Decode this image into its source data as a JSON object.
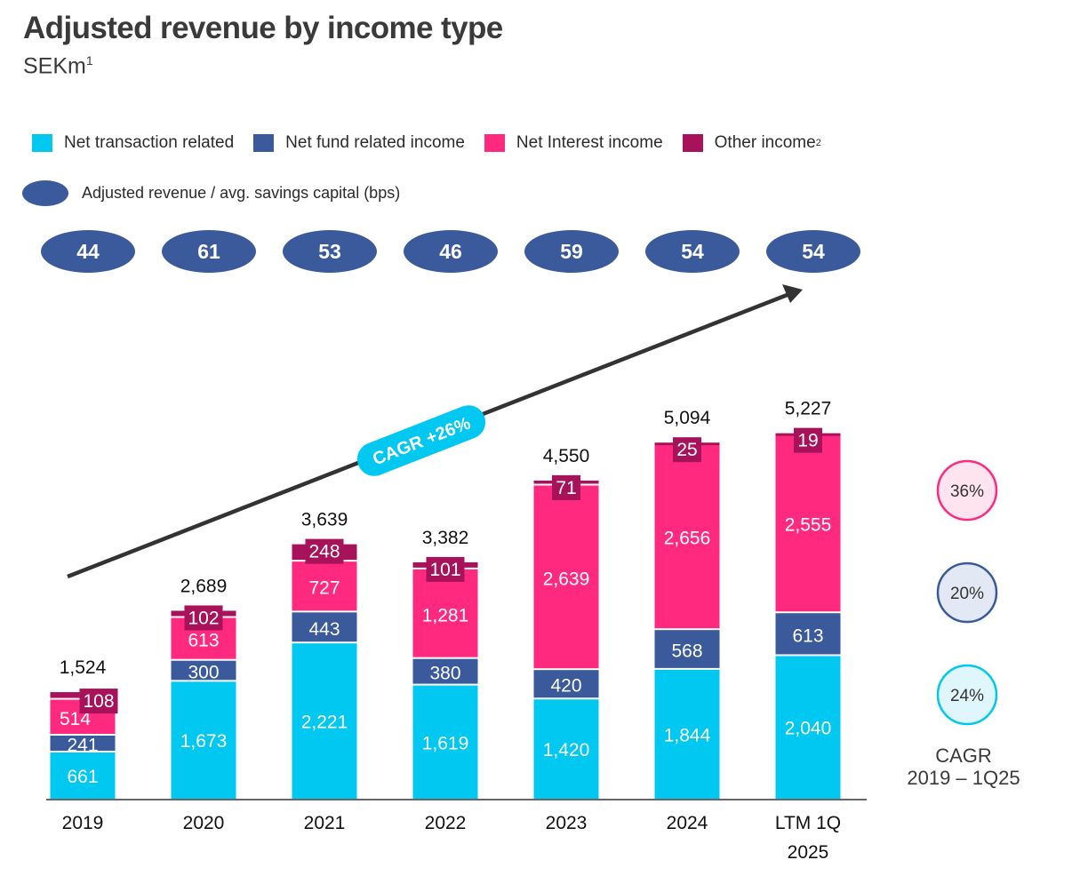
{
  "title": "Adjusted revenue by income type",
  "subtitle": "SEKm",
  "subtitle_note": "1",
  "legend": [
    {
      "label": "Net transaction related",
      "note": "",
      "color": "#00c8f0"
    },
    {
      "label": "Net fund related income",
      "note": "",
      "color": "#3a5a9c"
    },
    {
      "label": "Net Interest income",
      "note": "",
      "color": "#ff2a7f"
    },
    {
      "label": "Other income",
      "note": "2",
      "color": "#a8125a"
    }
  ],
  "bps_legend": "Adjusted revenue / avg. savings capital (bps)",
  "cagr_annotation": "CAGR +26%",
  "cagr_panel": {
    "title_line1": "CAGR",
    "title_line2": "2019 – 1Q25",
    "items": [
      {
        "value": "36%",
        "series": "Net Interest income",
        "fill": "#fde4ee",
        "stroke": "#ff2a7f"
      },
      {
        "value": "20%",
        "series": "Net fund related income",
        "fill": "#e2e8f4",
        "stroke": "#3a5a9c"
      },
      {
        "value": "24%",
        "series": "Net transaction related",
        "fill": "#dff6fc",
        "stroke": "#00c8f0"
      }
    ]
  },
  "chart_data": {
    "type": "bar",
    "stacked": true,
    "categories": [
      "2019",
      "2020",
      "2021",
      "2022",
      "2023",
      "2024",
      "LTM 1Q 2025"
    ],
    "category_lines": [
      [
        "2019"
      ],
      [
        "2020"
      ],
      [
        "2021"
      ],
      [
        "2022"
      ],
      [
        "2023"
      ],
      [
        "2024"
      ],
      [
        "LTM 1Q",
        "2025"
      ]
    ],
    "series": [
      {
        "name": "Net transaction related",
        "values": [
          661,
          1673,
          2221,
          1619,
          1420,
          1844,
          2040
        ],
        "labels": [
          "661",
          "1,673",
          "2,221",
          "1,619",
          "1,420",
          "1,844",
          "2,040"
        ],
        "color": "#00c8f0"
      },
      {
        "name": "Net fund related income",
        "values": [
          241,
          300,
          443,
          380,
          420,
          568,
          613
        ],
        "labels": [
          "241",
          "300",
          "443",
          "380",
          "420",
          "568",
          "613"
        ],
        "color": "#3a5a9c"
      },
      {
        "name": "Net Interest income",
        "values": [
          514,
          613,
          727,
          1281,
          2639,
          2656,
          2555
        ],
        "labels": [
          "514",
          "613",
          "727",
          "1,281",
          "2,639",
          "2,656",
          "2,555"
        ],
        "color": "#ff2a7f"
      },
      {
        "name": "Other income",
        "values": [
          108,
          102,
          248,
          101,
          71,
          25,
          19
        ],
        "labels": [
          "108",
          "102",
          "248",
          "101",
          "71",
          "25",
          "19"
        ],
        "color": "#a8125a"
      }
    ],
    "totals": [
      1524,
      2689,
      3639,
      3382,
      4550,
      5094,
      5227
    ],
    "total_labels": [
      "1,524",
      "2,689",
      "3,639",
      "3,382",
      "4,550",
      "5,094",
      "5,227"
    ],
    "bps": [
      "44",
      "61",
      "53",
      "46",
      "59",
      "54",
      "54"
    ],
    "ylim": [
      0,
      5500
    ]
  }
}
